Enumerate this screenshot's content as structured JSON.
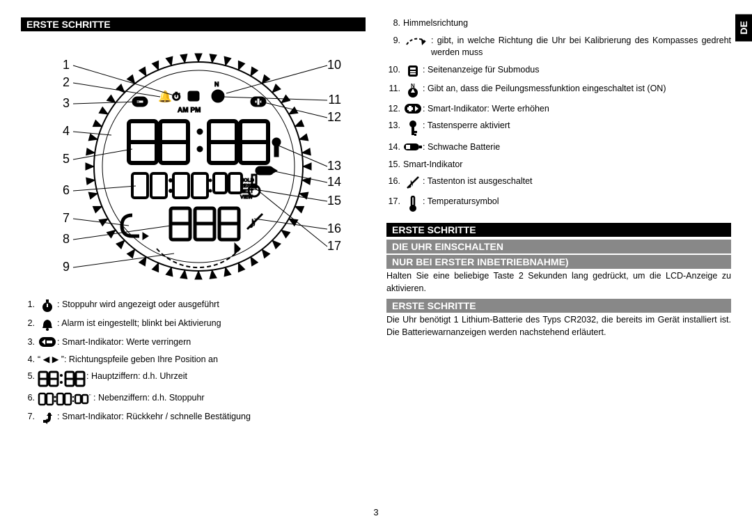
{
  "lang_tab": "DE",
  "page_number": "3",
  "colors": {
    "black": "#000000",
    "grey": "#888888",
    "white": "#ffffff"
  },
  "left": {
    "heading": "ERSTE SCHRITTE",
    "diagram": {
      "left_nums": [
        "1",
        "2",
        "3",
        "4",
        "5",
        "6",
        "7",
        "8",
        "9"
      ],
      "right_nums": [
        "10",
        "11",
        "12",
        "13",
        "14",
        "15",
        "16",
        "17"
      ]
    },
    "legend": [
      {
        "n": "1.",
        "icon": "stopwatch",
        "text": ": Stoppuhr wird angezeigt oder ausgeführt"
      },
      {
        "n": "2.",
        "icon": "bell",
        "text": ": Alarm ist eingestellt; blinkt bei Aktivierung"
      },
      {
        "n": "3.",
        "icon": "minus-pill",
        "text": ": Smart-Indikator: Werte verringern"
      },
      {
        "n": "4.",
        "icon": "arrows-text",
        "text": "“ ◀ ▶ ”: Richtungspfeile geben Ihre Position an"
      },
      {
        "n": "5.",
        "icon": "big-digits",
        "text": ": Hauptziffern: d.h. Uhrzeit"
      },
      {
        "n": "6.",
        "icon": "small-digits",
        "text": ": Nebenziffern: d.h. Stoppuhr"
      },
      {
        "n": "7.",
        "icon": "return",
        "text": ": Smart-Indikator: Rückkehr / schnelle Bestätigung"
      }
    ]
  },
  "right": {
    "legend": [
      {
        "n": "8.",
        "icon": "",
        "text": "Himmelsrichtung"
      },
      {
        "n": "9.",
        "icon": "rot-arrow",
        "text": ": gibt, in welche Richtung die Uhr bei Kalibrierung des Kompasses gedreht werden muss"
      },
      {
        "n": "10.",
        "icon": "page-icon",
        "text": ": Seitenanzeige für Submodus"
      },
      {
        "n": "11.",
        "icon": "compass-n",
        "text": ": Gibt an, dass die Peilungsmessfunktion eingeschaltet ist (ON)"
      },
      {
        "n": "12.",
        "icon": "plus-pill",
        "text": ": Smart-Indikator: Werte erhöhen"
      },
      {
        "n": "13.",
        "icon": "key",
        "text": ": Tastensperre aktiviert"
      },
      {
        "n": "14.",
        "icon": "battery",
        "text": ": Schwache Batterie"
      },
      {
        "n": "15.",
        "icon": "",
        "text": "Smart-Indikator"
      },
      {
        "n": "16.",
        "icon": "mute",
        "text": ": Tastenton ist ausgeschaltet"
      },
      {
        "n": "17.",
        "icon": "thermo",
        "text": ": Temperatursymbol"
      }
    ],
    "sections": [
      {
        "type": "black",
        "text": "ERSTE SCHRITTE"
      },
      {
        "type": "grey",
        "text": "DIE UHR EINSCHALTEN"
      },
      {
        "type": "grey",
        "text": "NUR BEI ERSTER INBETRIEBNAHME)"
      },
      {
        "type": "para",
        "text": "Halten Sie eine beliebige Taste 2 Sekunden lang gedrückt, um die LCD-Anzeige zu aktivieren."
      },
      {
        "type": "grey",
        "text": "ERSTE SCHRITTE"
      },
      {
        "type": "para",
        "text": "Die Uhr benötigt 1 Lithium-Batterie des Typs CR2032, die bereits im Gerät installiert ist. Die Batteriewarnanzeigen werden nachstehend erläutert."
      }
    ]
  }
}
